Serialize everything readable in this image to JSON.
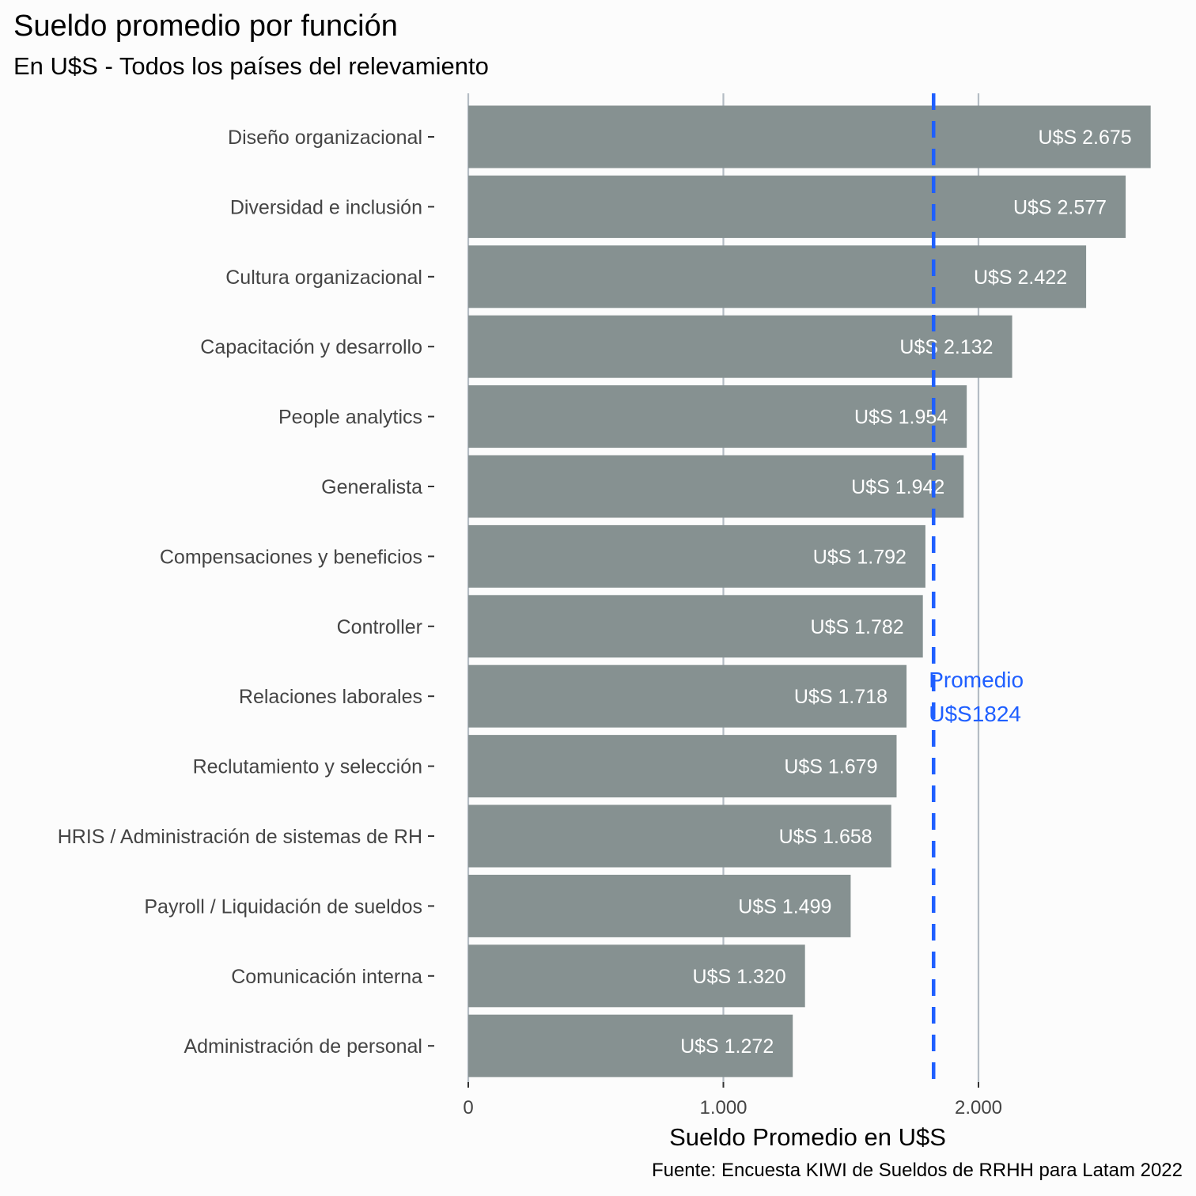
{
  "chart_data": {
    "type": "bar",
    "orientation": "horizontal",
    "title": "Sueldo promedio por función",
    "subtitle": "En U$S - Todos los países del relevamiento",
    "xlabel": "Sueldo Promedio en U$S",
    "ylabel": "",
    "caption": "Fuente: Encuesta KIWI de Sueldos de RRHH para Latam 2022",
    "xlim": [
      0,
      2700
    ],
    "x_ticks": [
      0,
      1000,
      2000
    ],
    "x_tick_labels": [
      "0",
      "1.000",
      "2.000"
    ],
    "grid": "vertical major lines",
    "categories": [
      "Diseño organizacional",
      "Diversidad e inclusión",
      "Cultura organizacional",
      "Capacitación y desarrollo",
      "People analytics",
      "Generalista",
      "Compensaciones y beneficios",
      "Controller",
      "Relaciones laborales",
      "Reclutamiento y selección",
      "HRIS / Administración de sistemas de RH",
      "Payroll / Liquidación de sueldos",
      "Comunicación interna",
      "Administración de personal"
    ],
    "values": [
      2675,
      2577,
      2422,
      2132,
      1954,
      1942,
      1792,
      1782,
      1718,
      1679,
      1658,
      1499,
      1320,
      1272
    ],
    "value_labels": [
      "U$S 2.675",
      "U$S 2.577",
      "U$S 2.422",
      "U$S 2.132",
      "U$S 1.954",
      "U$S 1.942",
      "U$S 1.792",
      "U$S 1.782",
      "U$S 1.718",
      "U$S 1.679",
      "U$S 1.658",
      "U$S 1.499",
      "U$S 1.320",
      "U$S 1.272"
    ],
    "reference_line": {
      "value": 1824,
      "label_lines": [
        "Promedio",
        "U$S1824"
      ],
      "color": "#1f5fff",
      "style": "dashed"
    },
    "bar_color": "#869191",
    "grid_color": "#b4bcc4"
  }
}
